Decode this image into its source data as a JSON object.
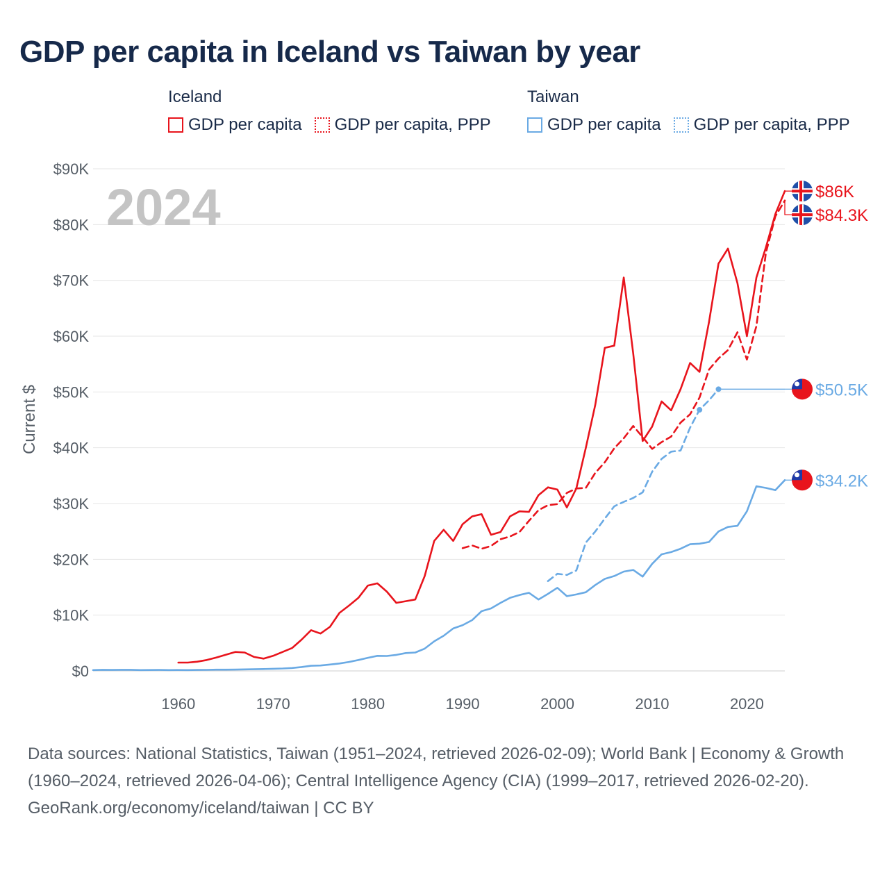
{
  "title": "GDP per capita in Iceland vs Taiwan by year",
  "legend": {
    "iceland": {
      "title": "Iceland",
      "items": [
        {
          "label": "GDP per capita",
          "style": "solid",
          "color": "#e8141c"
        },
        {
          "label": "GDP per capita, PPP",
          "style": "dotted",
          "color": "#e8141c"
        }
      ]
    },
    "taiwan": {
      "title": "Taiwan",
      "items": [
        {
          "label": "GDP per capita",
          "style": "solid",
          "color": "#6aaae4"
        },
        {
          "label": "GDP per capita, PPP",
          "style": "dotted",
          "color": "#6aaae4"
        }
      ]
    }
  },
  "footer": {
    "sources": "Data sources: National Statistics, Taiwan (1951–2024, retrieved 2026-02-09); World Bank | Economy & Growth (1960–2024, retrieved 2026-04-06); Central Intelligence Agency (CIA) (1999–2017, retrieved 2026-02-20).",
    "credit": "GeoRank.org/economy/iceland/taiwan | CC BY"
  },
  "chart_data": {
    "type": "line",
    "year_label": "2024",
    "ylabel": "Current $",
    "xlim": [
      1951,
      2024
    ],
    "ylim": [
      0,
      90000
    ],
    "yticks": [
      0,
      10000,
      20000,
      30000,
      40000,
      50000,
      60000,
      70000,
      80000,
      90000
    ],
    "ytick_labels": [
      "$0",
      "$10K",
      "$20K",
      "$30K",
      "$40K",
      "$50K",
      "$60K",
      "$70K",
      "$80K",
      "$90K"
    ],
    "xticks": [
      1960,
      1970,
      1980,
      1990,
      2000,
      2010,
      2020
    ],
    "xtick_labels": [
      "1960",
      "1970",
      "1980",
      "1990",
      "2000",
      "2010",
      "2020"
    ],
    "grid": true,
    "series": [
      {
        "name": "Iceland GDP per capita",
        "country": "iceland",
        "color": "#e8141c",
        "dash": "solid",
        "end_label": "$86K",
        "end_value": 86000,
        "points": [
          [
            1960,
            1500
          ],
          [
            1961,
            1500
          ],
          [
            1962,
            1650
          ],
          [
            1963,
            1950
          ],
          [
            1964,
            2400
          ],
          [
            1965,
            2900
          ],
          [
            1966,
            3400
          ],
          [
            1967,
            3300
          ],
          [
            1968,
            2500
          ],
          [
            1969,
            2200
          ],
          [
            1970,
            2700
          ],
          [
            1971,
            3400
          ],
          [
            1972,
            4100
          ],
          [
            1973,
            5600
          ],
          [
            1974,
            7300
          ],
          [
            1975,
            6700
          ],
          [
            1976,
            7900
          ],
          [
            1977,
            10400
          ],
          [
            1978,
            11700
          ],
          [
            1979,
            13100
          ],
          [
            1980,
            15300
          ],
          [
            1981,
            15700
          ],
          [
            1982,
            14200
          ],
          [
            1983,
            12200
          ],
          [
            1984,
            12500
          ],
          [
            1985,
            12800
          ],
          [
            1986,
            17000
          ],
          [
            1987,
            23300
          ],
          [
            1988,
            25300
          ],
          [
            1989,
            23300
          ],
          [
            1990,
            26300
          ],
          [
            1991,
            27700
          ],
          [
            1992,
            28100
          ],
          [
            1993,
            24400
          ],
          [
            1994,
            24900
          ],
          [
            1995,
            27700
          ],
          [
            1996,
            28600
          ],
          [
            1997,
            28500
          ],
          [
            1998,
            31500
          ],
          [
            1999,
            32900
          ],
          [
            2000,
            32500
          ],
          [
            2001,
            29300
          ],
          [
            2002,
            32700
          ],
          [
            2003,
            40000
          ],
          [
            2004,
            47700
          ],
          [
            2005,
            57900
          ],
          [
            2006,
            58300
          ],
          [
            2007,
            70500
          ],
          [
            2008,
            56900
          ],
          [
            2009,
            41200
          ],
          [
            2010,
            43800
          ],
          [
            2011,
            48300
          ],
          [
            2012,
            46700
          ],
          [
            2013,
            50500
          ],
          [
            2014,
            55200
          ],
          [
            2015,
            53600
          ],
          [
            2016,
            62500
          ],
          [
            2017,
            73000
          ],
          [
            2018,
            75700
          ],
          [
            2019,
            69500
          ],
          [
            2020,
            60000
          ],
          [
            2021,
            70500
          ],
          [
            2022,
            75900
          ],
          [
            2023,
            81900
          ],
          [
            2024,
            86000
          ]
        ]
      },
      {
        "name": "Iceland GDP per capita, PPP",
        "country": "iceland",
        "color": "#e8141c",
        "dash": "dashed",
        "end_label": "$84.3K",
        "end_value": 84300,
        "points": [
          [
            1990,
            22000
          ],
          [
            1991,
            22500
          ],
          [
            1992,
            21900
          ],
          [
            1993,
            22400
          ],
          [
            1994,
            23600
          ],
          [
            1995,
            24100
          ],
          [
            1996,
            24900
          ],
          [
            1997,
            26900
          ],
          [
            1998,
            28800
          ],
          [
            1999,
            29700
          ],
          [
            2000,
            29900
          ],
          [
            2001,
            31900
          ],
          [
            2002,
            32700
          ],
          [
            2003,
            32800
          ],
          [
            2004,
            35500
          ],
          [
            2005,
            37400
          ],
          [
            2006,
            39900
          ],
          [
            2007,
            41700
          ],
          [
            2008,
            43900
          ],
          [
            2009,
            41900
          ],
          [
            2010,
            39800
          ],
          [
            2011,
            41000
          ],
          [
            2012,
            42000
          ],
          [
            2013,
            44500
          ],
          [
            2014,
            46000
          ],
          [
            2015,
            49000
          ],
          [
            2016,
            54000
          ],
          [
            2017,
            56000
          ],
          [
            2018,
            57500
          ],
          [
            2019,
            60700
          ],
          [
            2020,
            55800
          ],
          [
            2021,
            61800
          ],
          [
            2022,
            74900
          ],
          [
            2023,
            81500
          ],
          [
            2024,
            84300
          ]
        ]
      },
      {
        "name": "Taiwan GDP per capita",
        "country": "taiwan",
        "color": "#6aaae4",
        "dash": "solid",
        "end_label": "$34.2K",
        "end_value": 34200,
        "points": [
          [
            1951,
            150
          ],
          [
            1952,
            200
          ],
          [
            1953,
            180
          ],
          [
            1954,
            200
          ],
          [
            1955,
            200
          ],
          [
            1956,
            150
          ],
          [
            1957,
            160
          ],
          [
            1958,
            180
          ],
          [
            1959,
            150
          ],
          [
            1960,
            160
          ],
          [
            1961,
            150
          ],
          [
            1962,
            170
          ],
          [
            1963,
            190
          ],
          [
            1964,
            220
          ],
          [
            1965,
            220
          ],
          [
            1966,
            240
          ],
          [
            1967,
            270
          ],
          [
            1968,
            300
          ],
          [
            1969,
            340
          ],
          [
            1970,
            390
          ],
          [
            1971,
            440
          ],
          [
            1972,
            520
          ],
          [
            1973,
            700
          ],
          [
            1974,
            920
          ],
          [
            1975,
            970
          ],
          [
            1976,
            1150
          ],
          [
            1977,
            1330
          ],
          [
            1978,
            1600
          ],
          [
            1979,
            1950
          ],
          [
            1980,
            2350
          ],
          [
            1981,
            2700
          ],
          [
            1982,
            2680
          ],
          [
            1983,
            2880
          ],
          [
            1984,
            3200
          ],
          [
            1985,
            3300
          ],
          [
            1986,
            4000
          ],
          [
            1987,
            5300
          ],
          [
            1988,
            6300
          ],
          [
            1989,
            7600
          ],
          [
            1990,
            8200
          ],
          [
            1991,
            9100
          ],
          [
            1992,
            10700
          ],
          [
            1993,
            11200
          ],
          [
            1994,
            12200
          ],
          [
            1995,
            13100
          ],
          [
            1996,
            13600
          ],
          [
            1997,
            14000
          ],
          [
            1998,
            12800
          ],
          [
            1999,
            13800
          ],
          [
            2000,
            14900
          ],
          [
            2001,
            13400
          ],
          [
            2002,
            13700
          ],
          [
            2003,
            14100
          ],
          [
            2004,
            15400
          ],
          [
            2005,
            16500
          ],
          [
            2006,
            17000
          ],
          [
            2007,
            17800
          ],
          [
            2008,
            18100
          ],
          [
            2009,
            16900
          ],
          [
            2010,
            19200
          ],
          [
            2011,
            20900
          ],
          [
            2012,
            21300
          ],
          [
            2013,
            21900
          ],
          [
            2014,
            22700
          ],
          [
            2015,
            22800
          ],
          [
            2016,
            23100
          ],
          [
            2017,
            25000
          ],
          [
            2018,
            25800
          ],
          [
            2019,
            26000
          ],
          [
            2020,
            28600
          ],
          [
            2021,
            33100
          ],
          [
            2022,
            32800
          ],
          [
            2023,
            32400
          ],
          [
            2024,
            34200
          ]
        ]
      },
      {
        "name": "Taiwan GDP per capita, PPP",
        "country": "taiwan",
        "color": "#6aaae4",
        "dash": "dashed",
        "end_label": "$50.5K",
        "end_value": 50500,
        "points": [
          [
            1999,
            16100
          ],
          [
            2000,
            17400
          ],
          [
            2001,
            17200
          ],
          [
            2002,
            18000
          ],
          [
            2003,
            23000
          ],
          [
            2004,
            25000
          ],
          [
            2005,
            27300
          ],
          [
            2006,
            29500
          ],
          [
            2007,
            30300
          ],
          [
            2008,
            31000
          ],
          [
            2009,
            32000
          ],
          [
            2010,
            35700
          ],
          [
            2011,
            38000
          ],
          [
            2012,
            39300
          ],
          [
            2013,
            39500
          ],
          [
            2014,
            43600
          ],
          [
            2015,
            46800
          ],
          [
            2016,
            48500
          ],
          [
            2017,
            50500
          ]
        ],
        "markers": [
          [
            2015,
            46800
          ],
          [
            2017,
            50500
          ]
        ],
        "hold_to": 2024
      }
    ]
  }
}
